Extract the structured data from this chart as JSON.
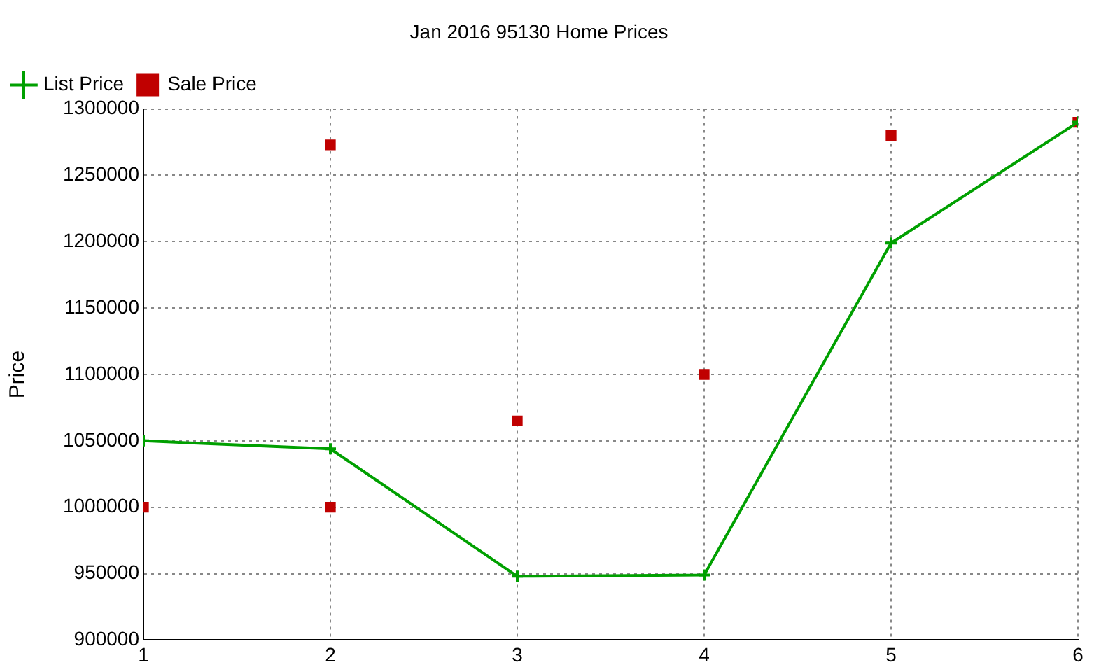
{
  "chart_data": {
    "type": "line",
    "title": "Jan 2016 95130 Home Prices",
    "ylabel": "Price",
    "xlim": [
      1,
      6
    ],
    "xticks": [
      1,
      2,
      3,
      4,
      5,
      6
    ],
    "ylim": [
      900000,
      1300000
    ],
    "yticks": [
      900000,
      950000,
      1000000,
      1050000,
      1100000,
      1150000,
      1200000,
      1250000,
      1300000
    ],
    "grid": true,
    "legend": "top left",
    "series": [
      {
        "name": "List Price",
        "type": "line",
        "color": "#00a000",
        "marker": "cross",
        "x": [
          1,
          2,
          3,
          4,
          5,
          6
        ],
        "values": [
          1050000,
          1044000,
          948000,
          949000,
          1199000,
          1290000
        ]
      },
      {
        "name": "Sale Price",
        "type": "scatter",
        "color": "#c00000",
        "marker": "square",
        "x": [
          1,
          2,
          2,
          3,
          4,
          5,
          6
        ],
        "values": [
          1000000,
          1273000,
          1000000,
          1065000,
          1100000,
          1280000,
          1290000
        ]
      }
    ]
  }
}
